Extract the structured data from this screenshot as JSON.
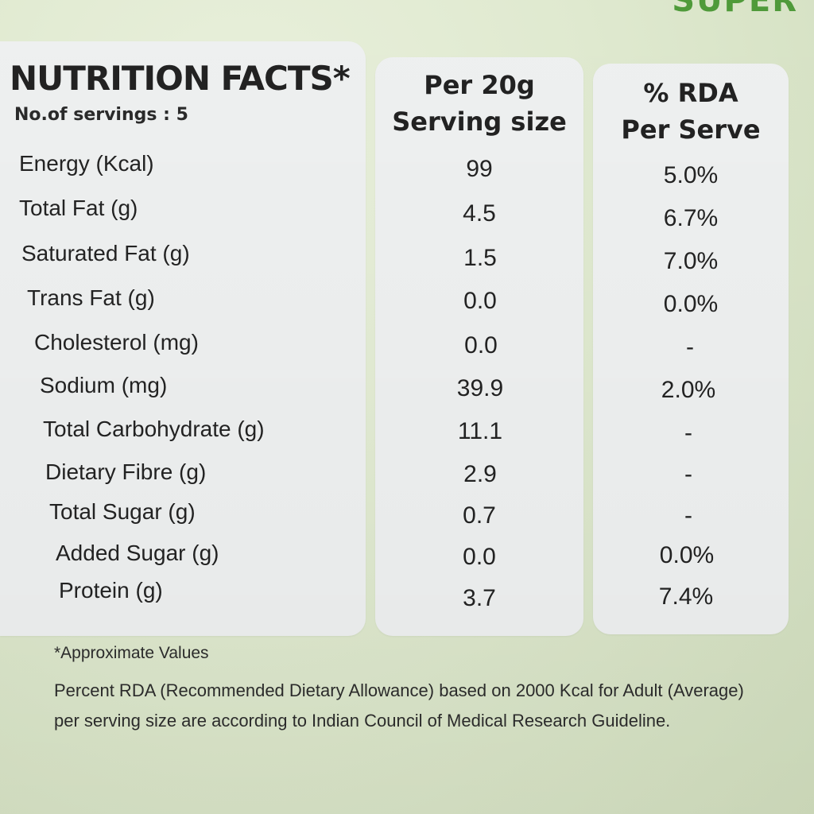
{
  "top_text": "SUPER",
  "title": "NUTRITION FACTS*",
  "servings": "No.of servings : 5",
  "columns": {
    "per_serving_line1": "Per 20g",
    "per_serving_line2": "Serving size",
    "rda_line1": "% RDA",
    "rda_line2": "Per Serve"
  },
  "rows": [
    {
      "label": "Energy (Kcal)",
      "value": "99",
      "rda": "5.0%"
    },
    {
      "label": "Total Fat (g)",
      "value": "4.5",
      "rda": "6.7%"
    },
    {
      "label": "Saturated Fat (g)",
      "value": "1.5",
      "rda": "7.0%"
    },
    {
      "label": "Trans Fat (g)",
      "value": "0.0",
      "rda": "0.0%"
    },
    {
      "label": "Cholesterol (mg)",
      "value": "0.0",
      "rda": "-"
    },
    {
      "label": "Sodium (mg)",
      "value": "39.9",
      "rda": "2.0%"
    },
    {
      "label": "Total Carbohydrate (g)",
      "value": "11.1",
      "rda": "-"
    },
    {
      "label": "Dietary Fibre (g)",
      "value": "2.9",
      "rda": "-"
    },
    {
      "label": "Total Sugar (g)",
      "value": "0.7",
      "rda": "-"
    },
    {
      "label": "Added Sugar (g)",
      "value": "0.0",
      "rda": "0.0%"
    },
    {
      "label": "Protein (g)",
      "value": "3.7",
      "rda": "7.4%"
    }
  ],
  "footnotes": {
    "approx": "*Approximate Values",
    "rda_line1": "Percent RDA (Recommended Dietary Allowance) based on 2000 Kcal for Adult (Average)",
    "rda_line2": "per serving size are according to Indian Council of Medical Research Guideline."
  },
  "colors": {
    "background": "#dfe9cf",
    "panel": "#eef0f0",
    "brand_green": "#4f9a3a",
    "text": "#222222"
  }
}
